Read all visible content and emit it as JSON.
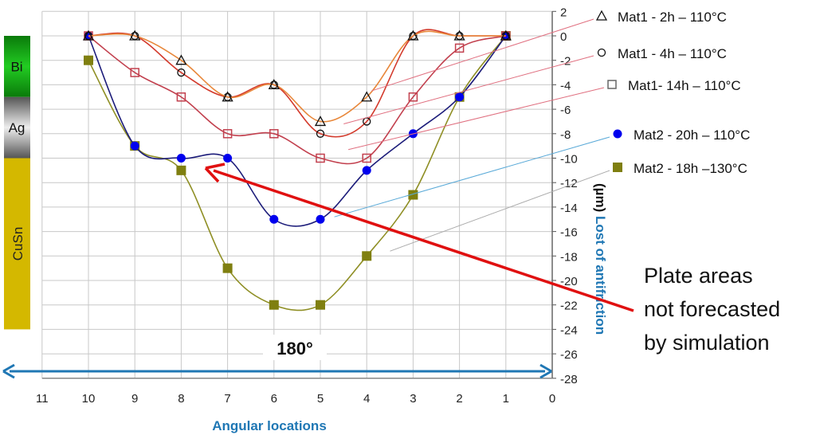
{
  "chart_data": {
    "type": "line",
    "xlabel": "Angular locations",
    "ylabel": "Lost of antifriction",
    "ylabel_unit": "(µm)",
    "xlim": [
      11,
      0
    ],
    "x_reversed": true,
    "ylim": [
      -28,
      2
    ],
    "x_ticks": [
      11,
      10,
      9,
      8,
      7,
      6,
      5,
      4,
      3,
      2,
      1,
      0
    ],
    "y_ticks": [
      2,
      0,
      -2,
      -4,
      -6,
      -8,
      -10,
      -12,
      -14,
      -16,
      -18,
      -20,
      -22,
      -24,
      -26,
      -28
    ],
    "grid": true,
    "legend_position": "right",
    "x": [
      10,
      9,
      8,
      7,
      6,
      5,
      4,
      3,
      2,
      1
    ],
    "series": [
      {
        "name": "Mat1 - 2h –  110°C",
        "marker": "triangle",
        "color": "#e8873a",
        "values": [
          0,
          0,
          -2,
          -5,
          -4,
          -7,
          -5,
          0,
          0,
          0
        ]
      },
      {
        "name": "Mat1 - 4h – 110°C",
        "marker": "circle-open",
        "color": "#d33a2c",
        "values": [
          0,
          0,
          -3,
          -5,
          -4,
          -8,
          -7,
          0,
          0,
          0
        ]
      },
      {
        "name": "Mat1- 14h –  110°C",
        "marker": "square-open",
        "color": "#c2404e",
        "values": [
          0,
          -3,
          -5,
          -8,
          -8,
          -10,
          -10,
          -5,
          -1,
          0
        ]
      },
      {
        "name": "Mat2 - 20h – 110°C",
        "marker": "circle-filled",
        "color": "#0000ee",
        "line_color": "#1c1c7a",
        "values": [
          0,
          -9,
          -10,
          -10,
          -15,
          -15,
          -11,
          -8,
          -5,
          0
        ]
      },
      {
        "name": "Mat2 - 18h –130°C",
        "marker": "square-filled",
        "color": "#7f7f10",
        "line_color": "#8f8f25",
        "values": [
          -2,
          -9,
          -11,
          -19,
          -22,
          -22,
          -18,
          -13,
          -5,
          0
        ]
      }
    ],
    "layers": [
      {
        "label": "Bi",
        "color": "#1a9a1a",
        "from": 0,
        "to": -5
      },
      {
        "label": "Ag",
        "color": "#9a9a9a",
        "from": -5,
        "to": -10
      },
      {
        "label": "CuSn",
        "color": "#d4b800",
        "from": -10,
        "to": -24
      }
    ],
    "annotations": {
      "span_label": "180°",
      "note_lines": [
        "Plate areas",
        "not forecasted",
        "by simulation"
      ],
      "arrow_color": "#e01010",
      "span_color": "#1f77b4"
    }
  }
}
